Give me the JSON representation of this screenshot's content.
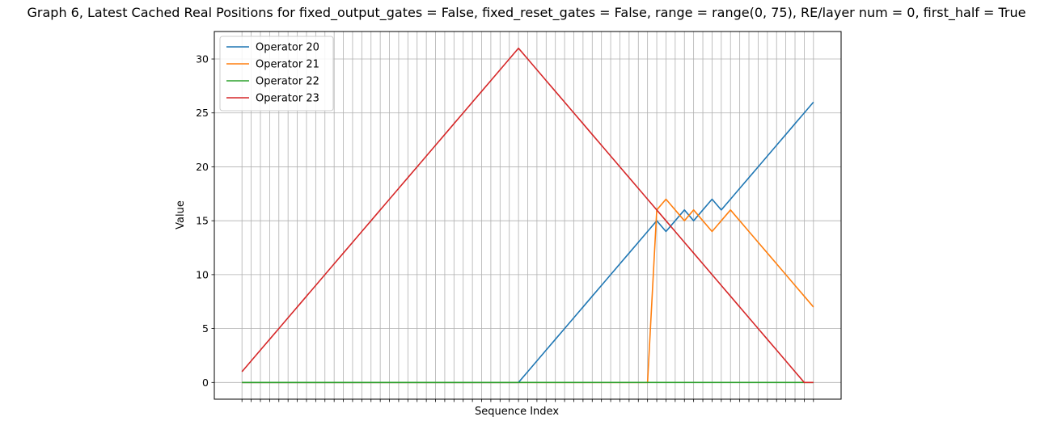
{
  "chart_data": {
    "type": "line",
    "title": "Graph 6, Latest Cached Real Positions for fixed_output_gates = False, fixed_reset_gates = False, range = range(0, 75), RE/layer num = 0, first_half = True",
    "xlabel": "Sequence Index",
    "ylabel": "Value",
    "x": [
      0,
      1,
      2,
      3,
      4,
      5,
      6,
      7,
      8,
      9,
      10,
      11,
      12,
      13,
      14,
      15,
      16,
      17,
      18,
      19,
      20,
      21,
      22,
      23,
      24,
      25,
      26,
      27,
      28,
      29,
      30,
      31,
      32,
      33,
      34,
      35,
      36,
      37,
      38,
      39,
      40,
      41,
      42,
      43,
      44,
      45,
      46,
      47,
      48,
      49,
      50,
      51,
      52,
      53,
      54,
      55,
      56,
      57,
      58,
      59,
      60,
      61,
      62
    ],
    "xlim": [
      -3,
      65
    ],
    "ylim": [
      -1.55,
      32.55
    ],
    "yticks": [
      0,
      5,
      10,
      15,
      20,
      25,
      30
    ],
    "grid": true,
    "x_tick_labels_visible": false,
    "legend_position": "top-left",
    "series": [
      {
        "name": "Operator 20",
        "color": "#1f77b4",
        "values": [
          0,
          0,
          0,
          0,
          0,
          0,
          0,
          0,
          0,
          0,
          0,
          0,
          0,
          0,
          0,
          0,
          0,
          0,
          0,
          0,
          0,
          0,
          0,
          0,
          0,
          0,
          0,
          0,
          0,
          0,
          0,
          1,
          2,
          3,
          4,
          5,
          6,
          7,
          8,
          9,
          10,
          11,
          12,
          13,
          14,
          15,
          14,
          15,
          16,
          15,
          16,
          17,
          16,
          17,
          18,
          19,
          20,
          21,
          22,
          23,
          24,
          25,
          26
        ]
      },
      {
        "name": "Operator 21",
        "color": "#ff7f0e",
        "values": [
          0,
          0,
          0,
          0,
          0,
          0,
          0,
          0,
          0,
          0,
          0,
          0,
          0,
          0,
          0,
          0,
          0,
          0,
          0,
          0,
          0,
          0,
          0,
          0,
          0,
          0,
          0,
          0,
          0,
          0,
          0,
          0,
          0,
          0,
          0,
          0,
          0,
          0,
          0,
          0,
          0,
          0,
          0,
          0,
          0,
          16,
          17,
          16,
          15,
          16,
          15,
          14,
          15,
          16,
          15,
          14,
          13,
          12,
          11,
          10,
          9,
          8,
          7
        ]
      },
      {
        "name": "Operator 22",
        "color": "#2ca02c",
        "values": [
          0,
          0,
          0,
          0,
          0,
          0,
          0,
          0,
          0,
          0,
          0,
          0,
          0,
          0,
          0,
          0,
          0,
          0,
          0,
          0,
          0,
          0,
          0,
          0,
          0,
          0,
          0,
          0,
          0,
          0,
          0,
          0,
          0,
          0,
          0,
          0,
          0,
          0,
          0,
          0,
          0,
          0,
          0,
          0,
          0,
          0,
          0,
          0,
          0,
          0,
          0,
          0,
          0,
          0,
          0,
          0,
          0,
          0,
          0,
          0,
          0,
          0,
          0
        ]
      },
      {
        "name": "Operator 23",
        "color": "#d62728",
        "values": [
          1,
          2,
          3,
          4,
          5,
          6,
          7,
          8,
          9,
          10,
          11,
          12,
          13,
          14,
          15,
          16,
          17,
          18,
          19,
          20,
          21,
          22,
          23,
          24,
          25,
          26,
          27,
          28,
          29,
          30,
          31,
          30,
          29,
          28,
          27,
          26,
          25,
          24,
          23,
          22,
          21,
          20,
          19,
          18,
          17,
          16,
          15,
          14,
          13,
          12,
          11,
          10,
          9,
          8,
          7,
          6,
          5,
          4,
          3,
          2,
          1,
          0,
          0
        ]
      }
    ]
  }
}
